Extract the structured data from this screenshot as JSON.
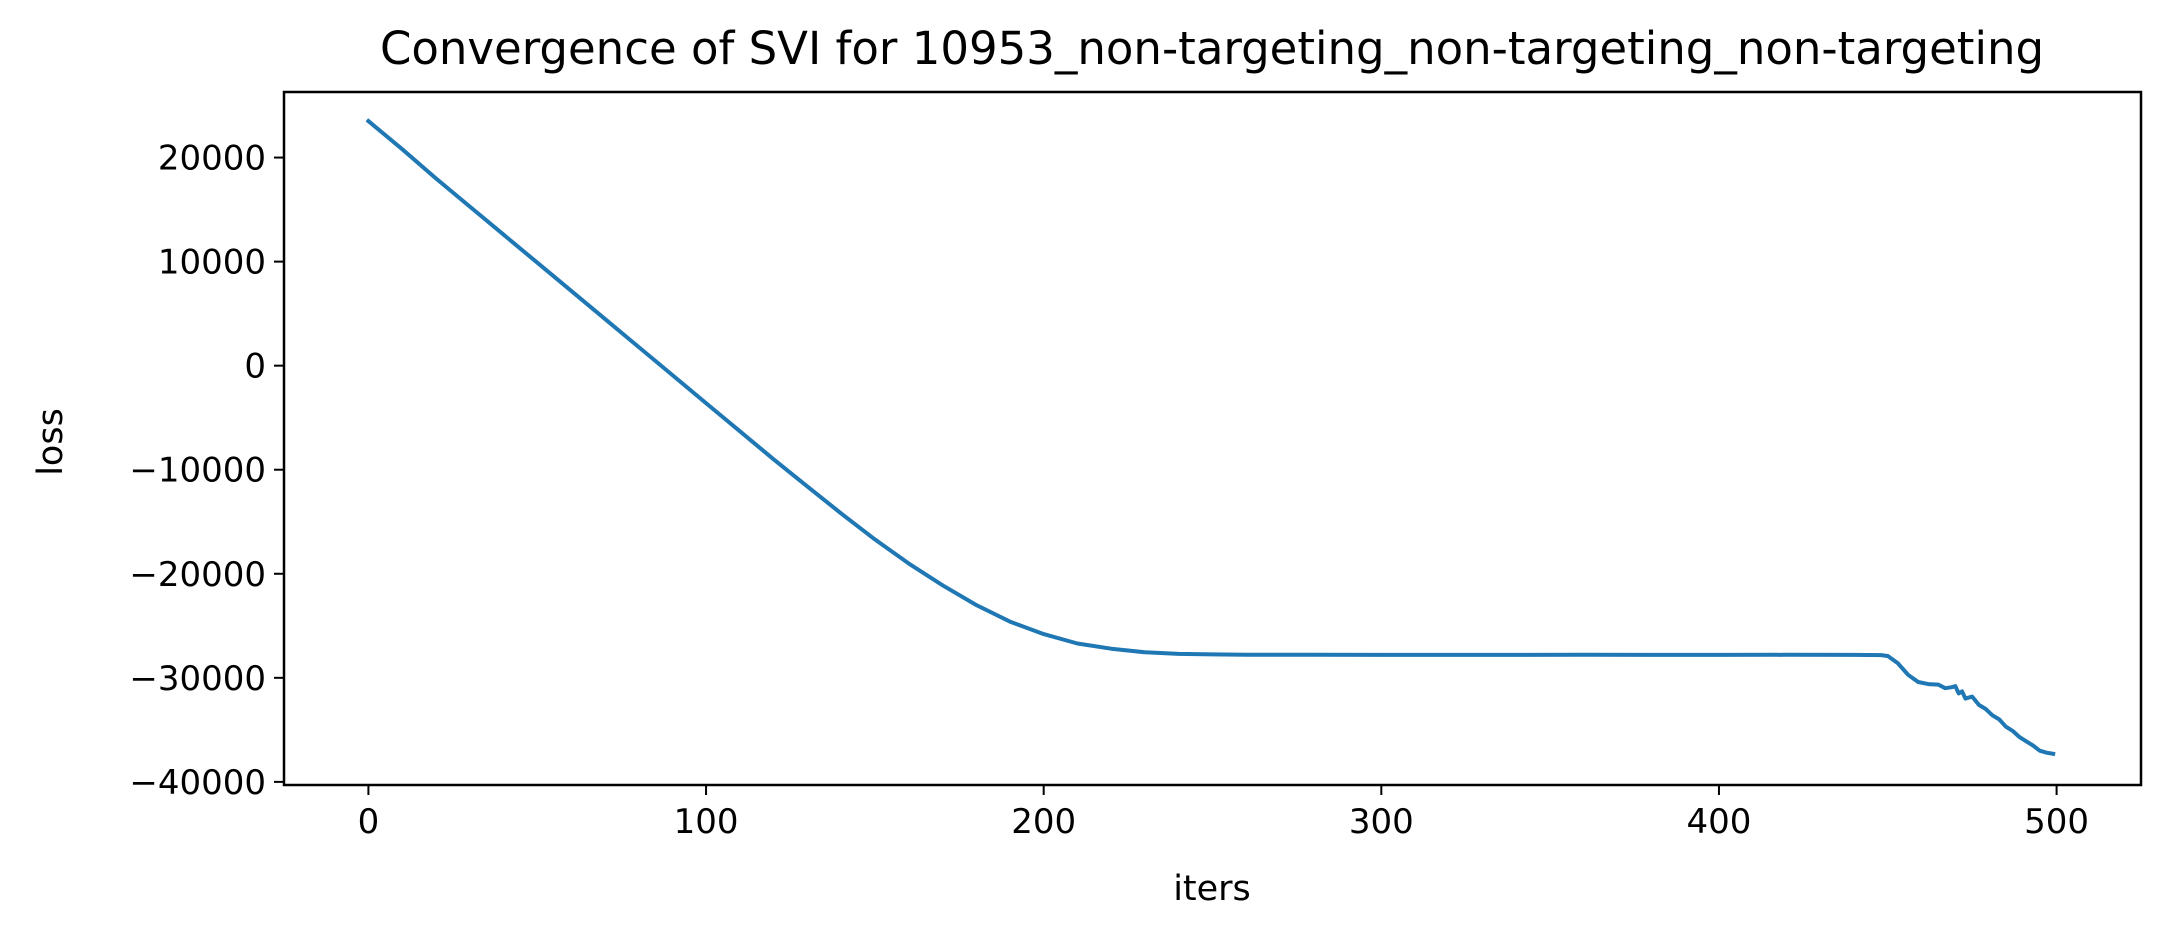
{
  "chart_data": {
    "type": "line",
    "title": "Convergence of SVI for 10953_non-targeting_non-targeting_non-targeting",
    "xlabel": "iters",
    "ylabel": "loss",
    "xlim": [
      -25,
      525
    ],
    "ylim": [
      -40300,
      26300
    ],
    "xticks": [
      0,
      100,
      200,
      300,
      400,
      500
    ],
    "yticks": [
      -40000,
      -30000,
      -20000,
      -10000,
      0,
      10000,
      20000
    ],
    "grid": false,
    "line_color": "#1f77b4",
    "series": [
      {
        "x": [
          0,
          10,
          20,
          30,
          40,
          50,
          60,
          70,
          80,
          90,
          100,
          110,
          120,
          130,
          140,
          150,
          160,
          170,
          180,
          190,
          200,
          210,
          220,
          230,
          240,
          250,
          260,
          280,
          300,
          320,
          340,
          360,
          380,
          400,
          420,
          440,
          448,
          450,
          453,
          456,
          459,
          462,
          465,
          467,
          469,
          470,
          471,
          472,
          473,
          475,
          477,
          479,
          481,
          483,
          485,
          487,
          489,
          491,
          493,
          495,
          497,
          499
        ],
        "values": [
          23500,
          20800,
          18000,
          15300,
          12600,
          9900,
          7200,
          4500,
          1800,
          -900,
          -3600,
          -6300,
          -9000,
          -11600,
          -14200,
          -16700,
          -19000,
          -21100,
          -23000,
          -24600,
          -25800,
          -26700,
          -27200,
          -27550,
          -27700,
          -27750,
          -27780,
          -27790,
          -27800,
          -27800,
          -27800,
          -27790,
          -27800,
          -27800,
          -27790,
          -27800,
          -27820,
          -27900,
          -28600,
          -29700,
          -30400,
          -30600,
          -30650,
          -31000,
          -30900,
          -30800,
          -31500,
          -31300,
          -32000,
          -31800,
          -32600,
          -33000,
          -33600,
          -34000,
          -34700,
          -35100,
          -35700,
          -36100,
          -36500,
          -37000,
          -37200,
          -37300
        ]
      }
    ]
  }
}
